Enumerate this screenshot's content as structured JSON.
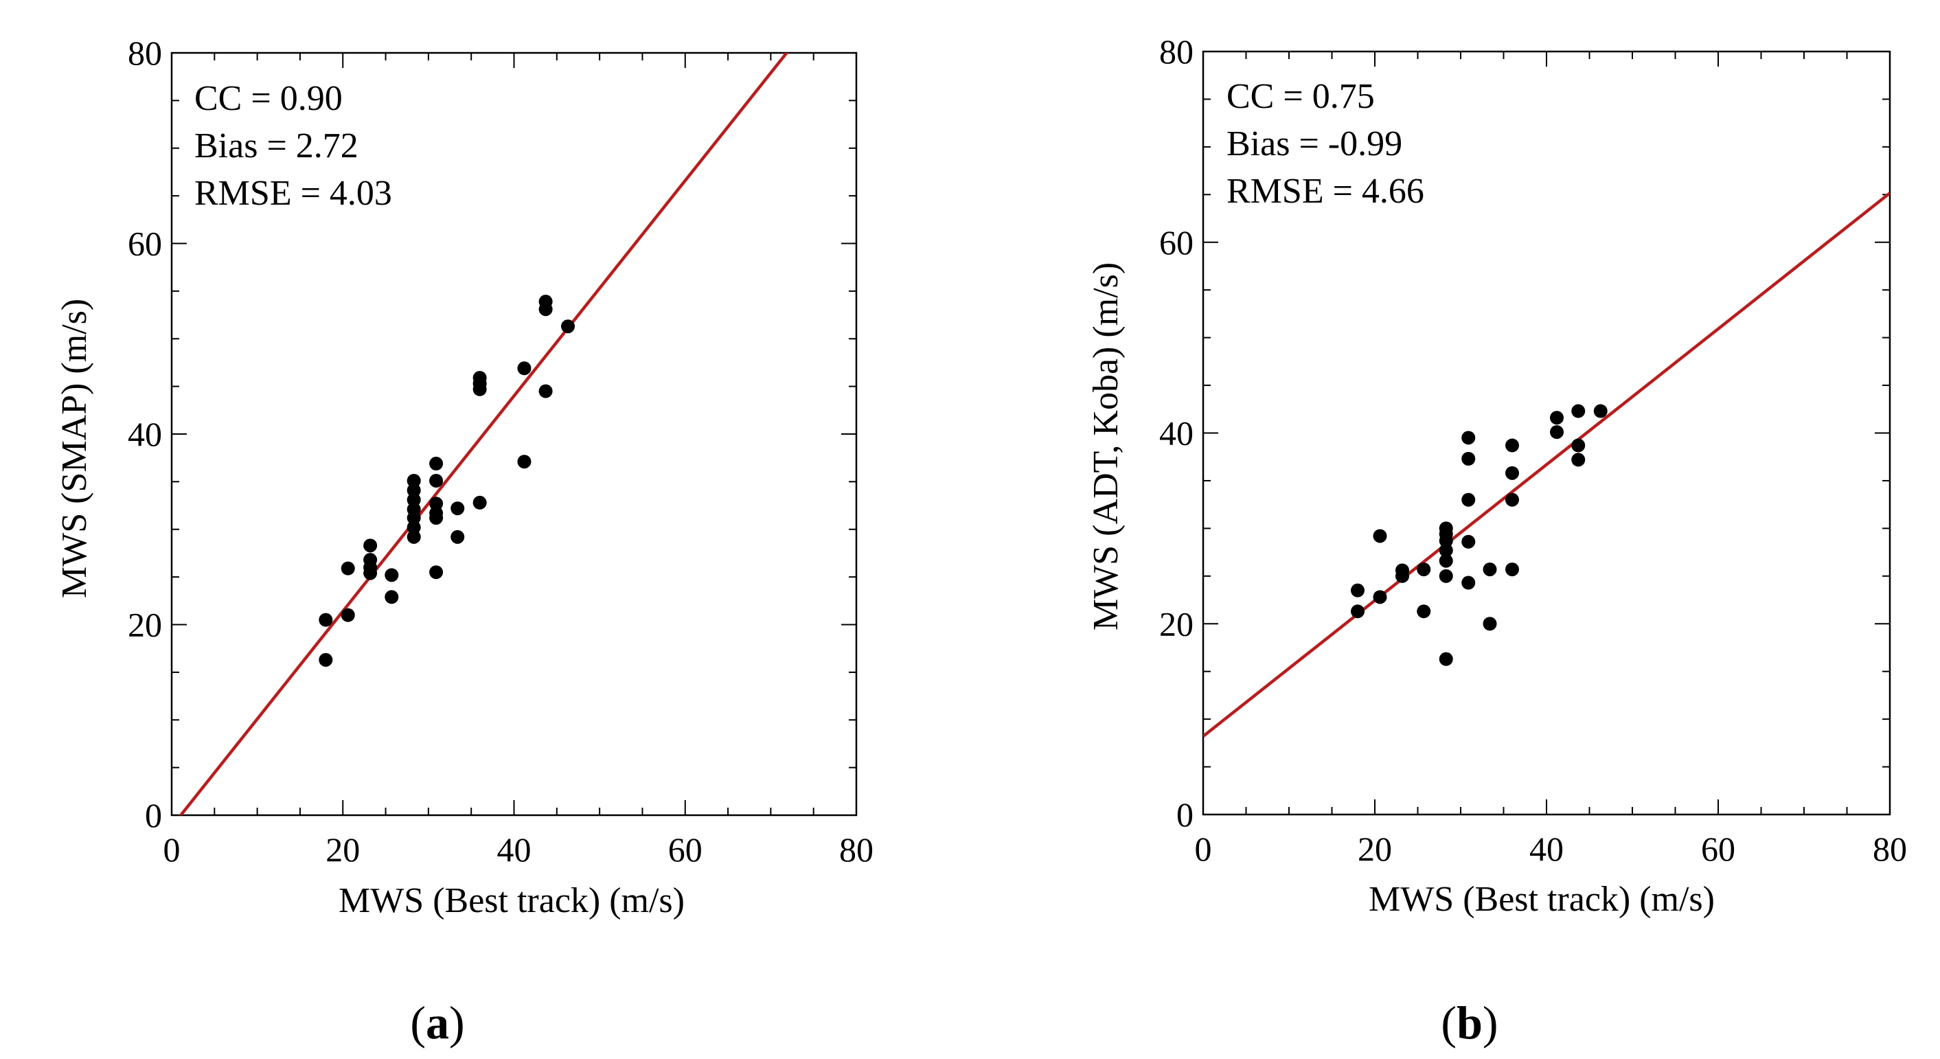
{
  "chart_data": [
    {
      "type": "scatter",
      "panel_label": "a",
      "xlabel": "MWS (Best track) (m/s)",
      "ylabel": "MWS (SMAP) (m/s)",
      "xlim": [
        0,
        80
      ],
      "ylim": [
        0,
        80
      ],
      "xticks": [
        0,
        20,
        40,
        60,
        80
      ],
      "yticks": [
        0,
        20,
        40,
        60,
        80
      ],
      "stats": [
        "CC = 0.90",
        "Bias = 2.72",
        "RMSE = 4.03"
      ],
      "line_color": "#b81d1d",
      "fit_line": {
        "slope": 1.13,
        "intercept": -1.2
      },
      "points": [
        [
          18,
          20.5
        ],
        [
          18,
          16.3
        ],
        [
          20.6,
          21
        ],
        [
          20.6,
          25.9
        ],
        [
          23.2,
          28.3
        ],
        [
          23.2,
          26.8
        ],
        [
          23.2,
          26
        ],
        [
          23.2,
          25.4
        ],
        [
          25.7,
          25.2
        ],
        [
          25.7,
          22.9
        ],
        [
          28.3,
          35.1
        ],
        [
          28.3,
          34.1
        ],
        [
          28.3,
          33.1
        ],
        [
          28.3,
          32.1
        ],
        [
          28.3,
          31.2
        ],
        [
          28.3,
          30.2
        ],
        [
          28.3,
          29.2
        ],
        [
          30.9,
          36.9
        ],
        [
          30.9,
          35.1
        ],
        [
          30.9,
          32.7
        ],
        [
          30.9,
          31.7
        ],
        [
          30.9,
          31.2
        ],
        [
          30.9,
          25.5
        ],
        [
          33.4,
          32.2
        ],
        [
          33.4,
          29.2
        ],
        [
          36,
          45.9
        ],
        [
          36,
          45.3
        ],
        [
          36,
          44.7
        ],
        [
          36,
          32.8
        ],
        [
          41.2,
          46.9
        ],
        [
          41.2,
          37.1
        ],
        [
          43.7,
          53.9
        ],
        [
          43.7,
          53.1
        ],
        [
          43.7,
          44.5
        ],
        [
          46.3,
          51.3
        ]
      ]
    },
    {
      "type": "scatter",
      "panel_label": "b",
      "xlabel": "MWS (Best track) (m/s)",
      "ylabel": "MWS (ADT, Koba) (m/s)",
      "xlim": [
        0,
        80
      ],
      "ylim": [
        0,
        80
      ],
      "xticks": [
        0,
        20,
        40,
        60,
        80
      ],
      "yticks": [
        0,
        20,
        40,
        60,
        80
      ],
      "stats": [
        "CC = 0.75",
        "Bias = -0.99",
        "RMSE = 4.66"
      ],
      "line_color": "#b81d1d",
      "fit_line": {
        "slope": 0.712,
        "intercept": 8.2
      },
      "points": [
        [
          18,
          23.5
        ],
        [
          18,
          21.3
        ],
        [
          20.6,
          29.2
        ],
        [
          20.6,
          22.8
        ],
        [
          23.2,
          25.6
        ],
        [
          23.2,
          25
        ],
        [
          25.7,
          25.7
        ],
        [
          25.7,
          21.3
        ],
        [
          28.3,
          30
        ],
        [
          28.3,
          29.4
        ],
        [
          28.3,
          28.7
        ],
        [
          28.3,
          27.7
        ],
        [
          28.3,
          26.6
        ],
        [
          28.3,
          25
        ],
        [
          28.3,
          16.3
        ],
        [
          30.9,
          39.5
        ],
        [
          30.9,
          37.3
        ],
        [
          30.9,
          33
        ],
        [
          30.9,
          28.6
        ],
        [
          30.9,
          24.3
        ],
        [
          33.4,
          25.7
        ],
        [
          33.4,
          20
        ],
        [
          36,
          38.7
        ],
        [
          36,
          35.8
        ],
        [
          36,
          33
        ],
        [
          36,
          25.7
        ],
        [
          41.2,
          41.6
        ],
        [
          41.2,
          40.1
        ],
        [
          43.7,
          42.3
        ],
        [
          43.7,
          38.7
        ],
        [
          43.7,
          37.2
        ],
        [
          46.3,
          42.3
        ]
      ]
    }
  ]
}
